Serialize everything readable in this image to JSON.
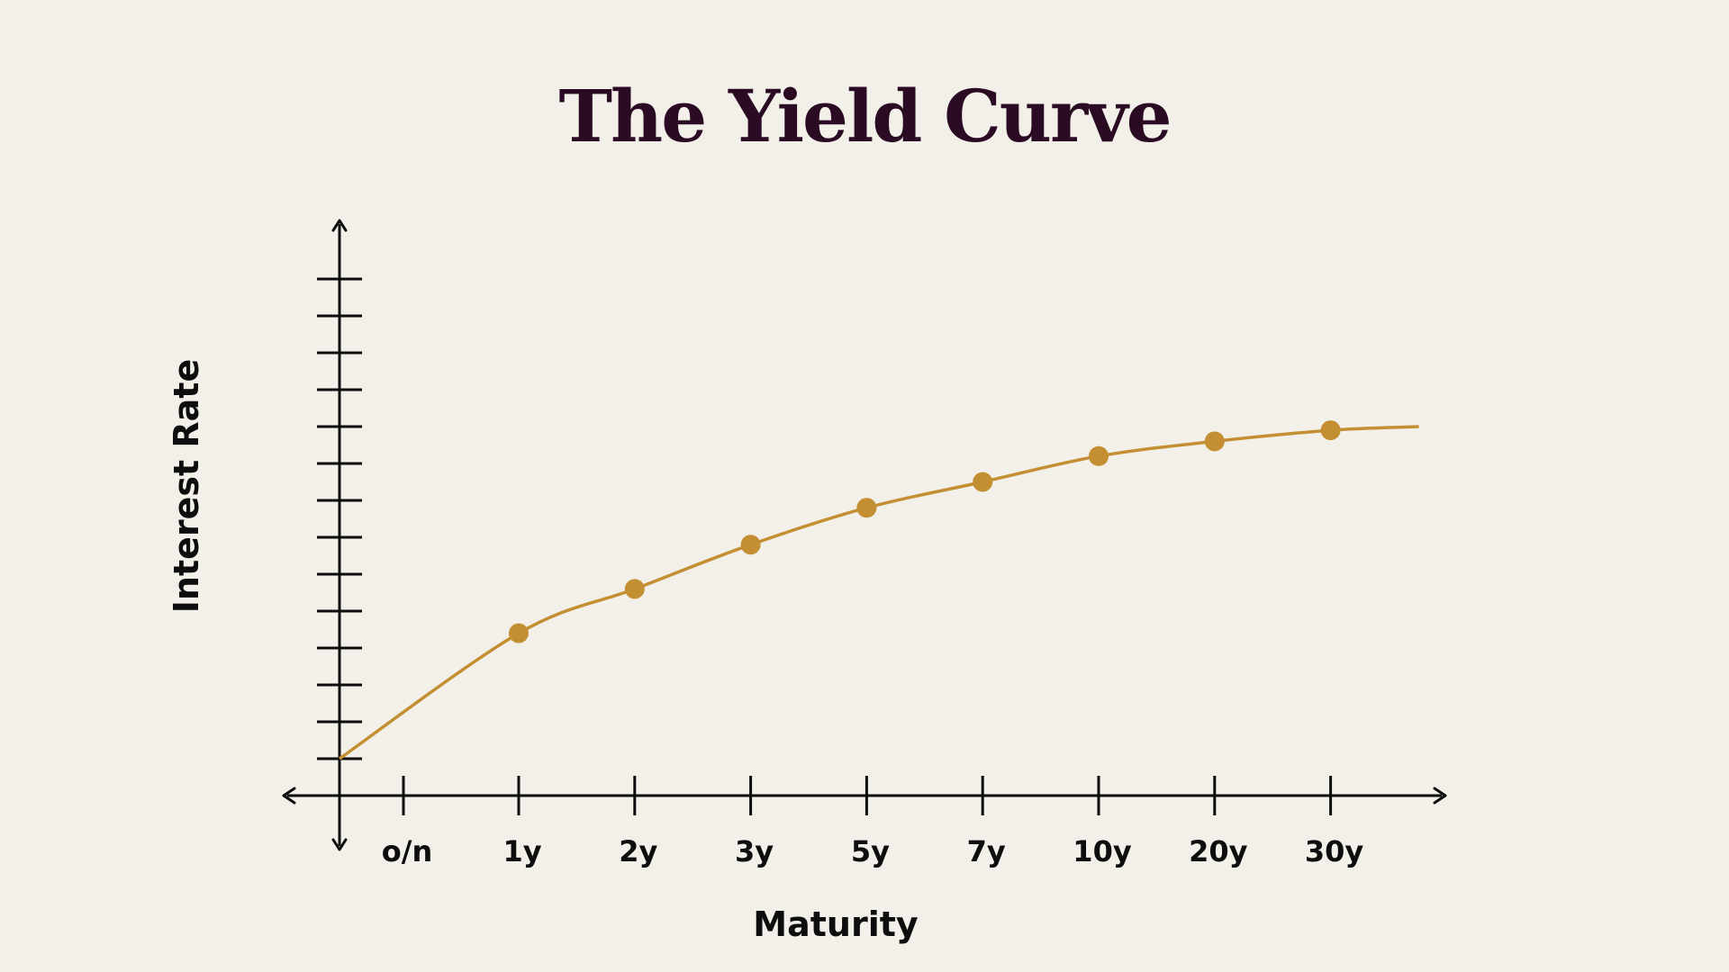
{
  "chart_data": {
    "type": "line",
    "title": "The Yield Curve",
    "xlabel": "Maturity",
    "ylabel": "Interest Rate",
    "categories": [
      "o/n",
      "1y",
      "2y",
      "3y",
      "5y",
      "7y",
      "10y",
      "20y",
      "30y"
    ],
    "series": [
      {
        "values": [
          null,
          4.4,
          5.6,
          6.8,
          7.8,
          8.5,
          9.2,
          9.6,
          9.9
        ]
      }
    ],
    "curve_start_value": 1.0,
    "curve_end_value": 10.0,
    "ylim": [
      0,
      14
    ],
    "y_ticks": [
      1,
      2,
      3,
      4,
      5,
      6,
      7,
      8,
      9,
      10,
      11,
      12,
      13,
      14
    ],
    "show_y_tick_labels": false,
    "grid": false,
    "legend": "none",
    "colors": {
      "series": "#c48f32",
      "axis": "#0d0d0d",
      "title": "#2a0b23",
      "background": "#f2f0e9"
    }
  }
}
